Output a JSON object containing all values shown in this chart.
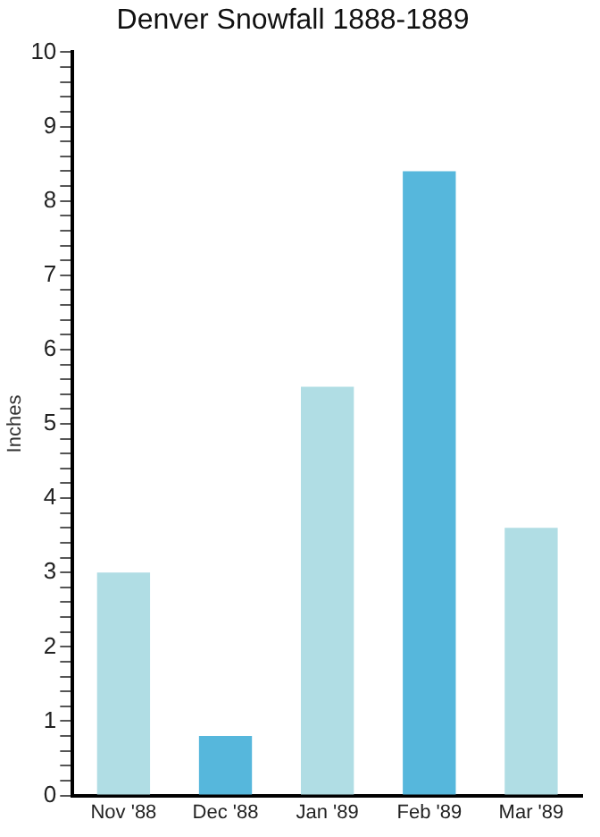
{
  "chart_data": {
    "type": "bar",
    "title": "Denver Snowfall 1888-1889",
    "ylabel": "Inches",
    "categories": [
      "Nov '88",
      "Dec '88",
      "Jan '89",
      "Feb '89",
      "Mar '89"
    ],
    "values": [
      3.0,
      0.8,
      5.5,
      8.4,
      3.6
    ],
    "colors": [
      "#b0dde4",
      "#56b7dc",
      "#b0dde4",
      "#56b7dc",
      "#b0dde4"
    ],
    "ylim": [
      0,
      10
    ],
    "yticks": [
      0,
      {
        "value": 0.2,
        "label": null
      },
      {
        "value": 0.4,
        "label": null
      },
      {
        "value": 0.6,
        "label": null
      },
      {
        "value": 0.8,
        "label": null
      },
      1,
      {
        "value": 1.2,
        "label": null
      },
      {
        "value": 1.4,
        "label": null
      },
      {
        "value": 1.6,
        "label": null
      },
      {
        "value": 1.8,
        "label": null
      },
      2,
      {
        "value": 2.2,
        "label": null
      },
      {
        "value": 2.4,
        "label": null
      },
      {
        "value": 2.6,
        "label": null
      },
      {
        "value": 2.8,
        "label": null
      },
      3,
      {
        "value": 3.2,
        "label": null
      },
      {
        "value": 3.4,
        "label": null
      },
      {
        "value": 3.6,
        "label": null
      },
      {
        "value": 3.8,
        "label": null
      },
      4,
      {
        "value": 4.2,
        "label": null
      },
      {
        "value": 4.4,
        "label": null
      },
      {
        "value": 4.6,
        "label": null
      },
      {
        "value": 4.8,
        "label": null
      },
      5,
      {
        "value": 5.2,
        "label": null
      },
      {
        "value": 5.4,
        "label": null
      },
      {
        "value": 5.6,
        "label": null
      },
      {
        "value": 5.8,
        "label": null
      },
      6,
      {
        "value": 6.2,
        "label": null
      },
      {
        "value": 6.4,
        "label": null
      },
      {
        "value": 6.6,
        "label": null
      },
      {
        "value": 6.8,
        "label": null
      },
      7,
      {
        "value": 7.2,
        "label": null
      },
      {
        "value": 7.4,
        "label": null
      },
      {
        "value": 7.6,
        "label": null
      },
      {
        "value": 7.8,
        "label": null
      },
      8,
      {
        "value": 8.2,
        "label": null
      },
      {
        "value": 8.4,
        "label": null
      },
      {
        "value": 8.6,
        "label": null
      },
      {
        "value": 8.8,
        "label": null
      },
      9,
      {
        "value": 9.2,
        "label": null
      },
      {
        "value": 9.4,
        "label": null
      },
      {
        "value": 9.6,
        "label": null
      },
      {
        "value": 9.8,
        "label": null
      },
      10
    ],
    "grid": false,
    "legend": false
  }
}
